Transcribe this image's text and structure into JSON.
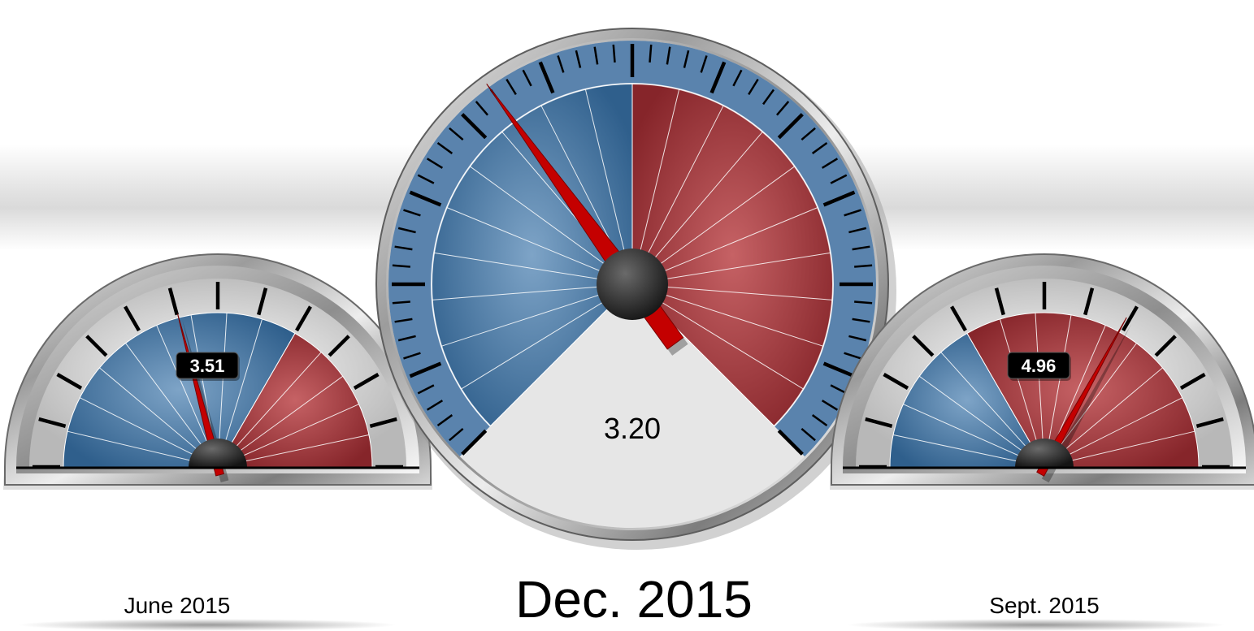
{
  "chart_data": [
    {
      "type": "gauge",
      "name": "june",
      "label": "June 2015",
      "value": 3.51,
      "value_text": "3.51",
      "scale": [
        1,
        7
      ],
      "bands": [
        {
          "from": 1,
          "to": 5,
          "color": "#3f6f9c"
        },
        {
          "from": 5,
          "to": 7,
          "color": "#9a3034"
        }
      ],
      "shape": "semicircle"
    },
    {
      "type": "gauge",
      "name": "december",
      "label": "Dec. 2015",
      "value": 3.2,
      "value_text": "3.20",
      "scale": [
        1,
        7
      ],
      "bands": [
        {
          "from": 1,
          "to": 4,
          "color": "#3f6f9c"
        },
        {
          "from": 4,
          "to": 7,
          "color": "#9a3034"
        }
      ],
      "shape": "circle"
    },
    {
      "type": "gauge",
      "name": "september",
      "label": "Sept. 2015",
      "value": 4.96,
      "value_text": "4.96",
      "scale": [
        1,
        7
      ],
      "bands": [
        {
          "from": 1,
          "to": 3,
          "color": "#3f6f9c"
        },
        {
          "from": 3,
          "to": 7,
          "color": "#9a3034"
        }
      ],
      "shape": "semicircle"
    }
  ],
  "colors": {
    "blue": "#3f6f9c",
    "red": "#9a3034",
    "needle": "#c40000",
    "bezel": "#a0a0a0",
    "face_center": "#e8e8e8"
  }
}
